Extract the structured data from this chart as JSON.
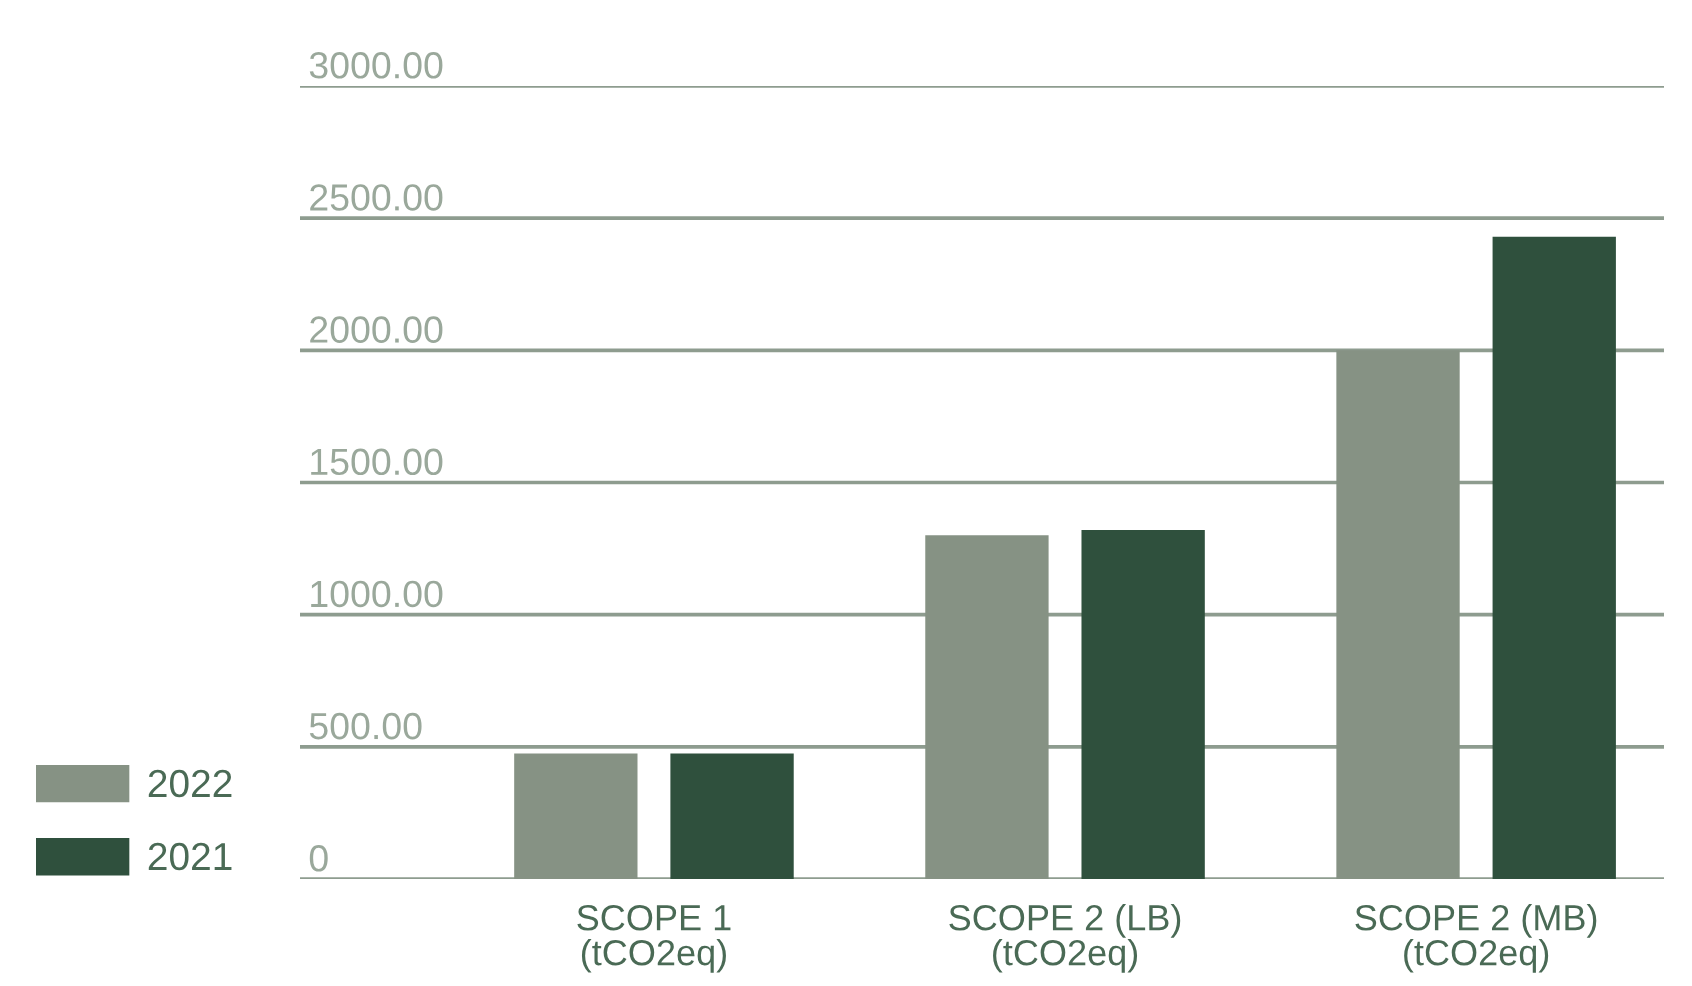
{
  "chart_data": {
    "type": "bar",
    "categories": [
      "SCOPE 1\n(tCO2eq)",
      "SCOPE 2 (LB)\n(tCO2eq)",
      "SCOPE 2 (MB)\n(tCO2eq)"
    ],
    "series": [
      {
        "name": "2022",
        "color": "#869284",
        "values": [
          475,
          1300,
          2000
        ]
      },
      {
        "name": "2021",
        "color": "#2f503d",
        "values": [
          475,
          1320,
          2430
        ]
      }
    ],
    "ylim": [
      0,
      3000
    ],
    "yticks": [
      0,
      {
        "value": 500,
        "label": "500.00"
      },
      {
        "value": 1000,
        "label": "1000.00"
      },
      {
        "value": 1500,
        "label": "1500.00"
      },
      {
        "value": 2000,
        "label": "2000.00"
      },
      {
        "value": 2500,
        "label": "2500.00"
      },
      {
        "value": 3000,
        "label": "3000.00"
      }
    ],
    "grid": "y",
    "legend": "bottom left"
  }
}
